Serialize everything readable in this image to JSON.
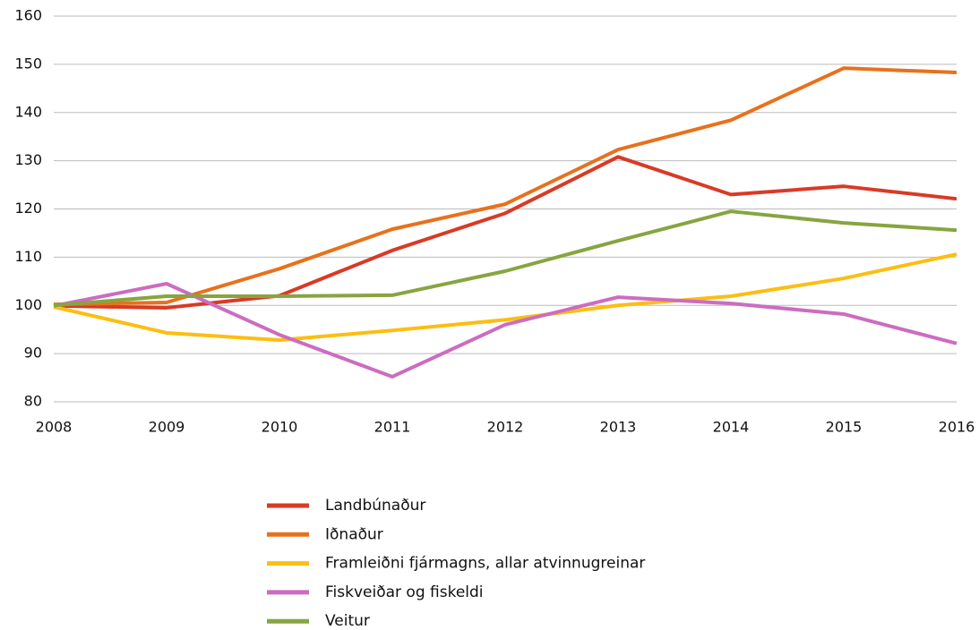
{
  "chart_data": {
    "type": "line",
    "x": [
      2008,
      2009,
      2010,
      2011,
      2012,
      2013,
      2014,
      2015,
      2016
    ],
    "xlim": [
      2008,
      2016
    ],
    "xticks": [
      2008,
      2009,
      2010,
      2011,
      2012,
      2013,
      2014,
      2015,
      2016
    ],
    "ylim": [
      80,
      160
    ],
    "yticks": [
      80,
      90,
      100,
      110,
      120,
      130,
      140,
      150,
      160
    ],
    "grid": true,
    "legend": "bottom",
    "series": [
      {
        "name": "Landbúnaður",
        "color": "#d93a26",
        "values": [
          99.9,
          99.5,
          102,
          111.4,
          119.1,
          130.8,
          123,
          124.7,
          122.1
        ]
      },
      {
        "name": "Iðnaður",
        "color": "#e8711c",
        "values": [
          100.2,
          100.6,
          107.6,
          115.8,
          121,
          132.3,
          138.4,
          149.2,
          148.3
        ]
      },
      {
        "name": "Framleiðni fjármagns, allar atvinnugreinar",
        "color": "#fbbe12",
        "values": [
          99.7,
          94.3,
          92.8,
          94.8,
          97,
          100,
          101.9,
          105.6,
          110.6
        ]
      },
      {
        "name": "Fiskveiðar og fiskeldi",
        "color": "#cc6cc0",
        "values": [
          99.9,
          104.5,
          93.9,
          85.2,
          96,
          101.7,
          100.4,
          98.2,
          92.1
        ]
      },
      {
        "name": "Veitur",
        "color": "#86a540",
        "values": [
          100,
          101.9,
          101.9,
          102.1,
          107.1,
          113.4,
          119.5,
          117.1,
          115.6
        ]
      }
    ]
  }
}
